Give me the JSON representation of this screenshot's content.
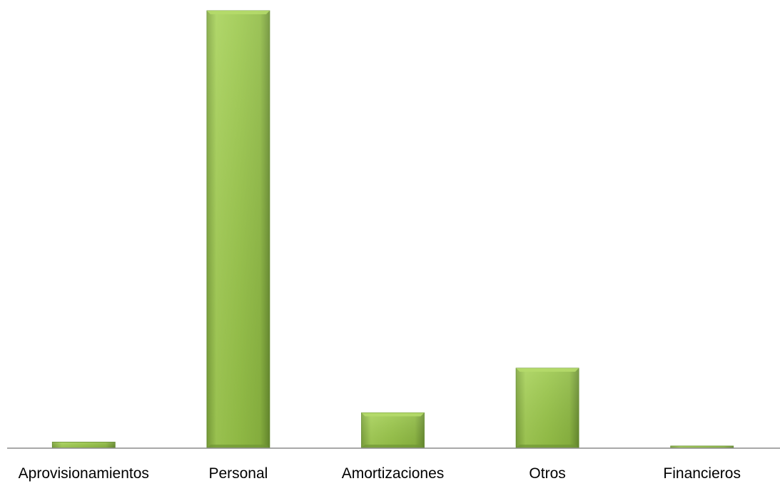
{
  "chart_data": {
    "type": "bar",
    "categories": [
      "Aprovisionamientos",
      "Personal",
      "Amortizaciones",
      "Otros",
      "Financieros"
    ],
    "values": [
      1.4,
      100,
      8.1,
      18.3,
      0.5
    ],
    "title": "",
    "xlabel": "",
    "ylabel": "",
    "ylim": [
      0,
      100
    ],
    "grid": false,
    "legend": "none",
    "colors": {
      "bar_light": "#b5da6a",
      "bar_main": "#9bc84a",
      "bar_dark": "#6f9634",
      "bar_stroke": "#5f8a28",
      "axis": "#8c8c8c",
      "label": "#000000"
    }
  }
}
